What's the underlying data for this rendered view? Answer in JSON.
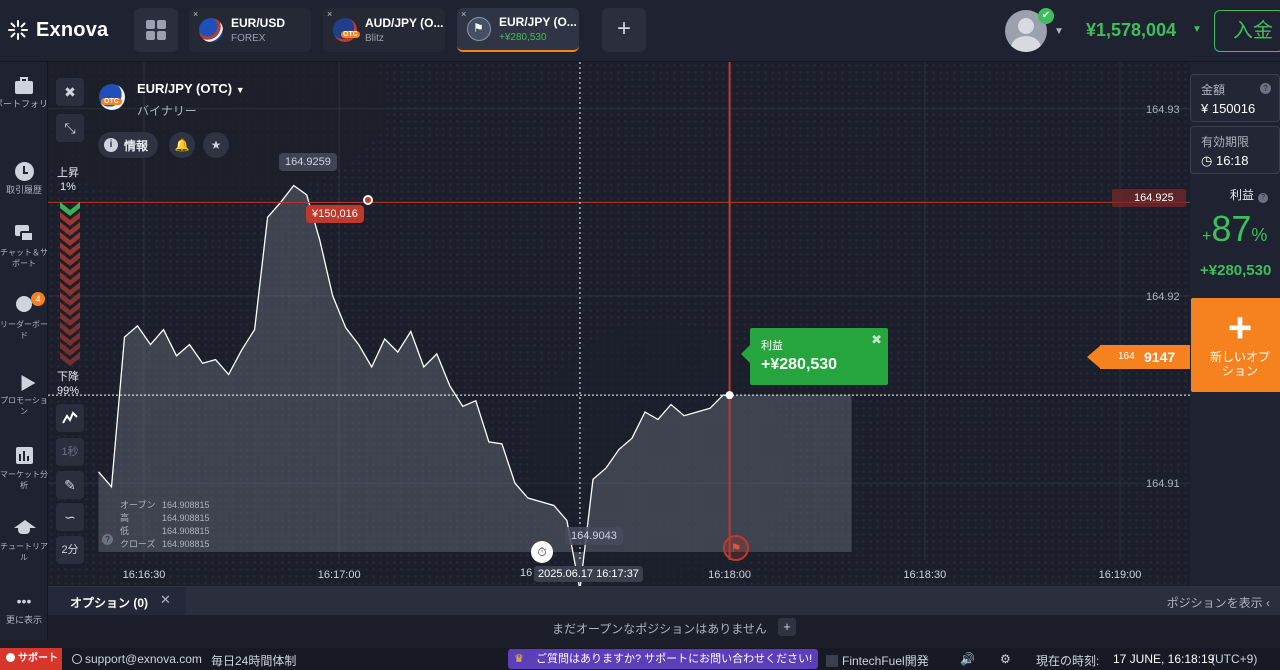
{
  "brand": {
    "name": "Exnova"
  },
  "tabs": [
    {
      "pair": "EUR/USD",
      "sub": "FOREX",
      "close": "×",
      "flag": "eur-usd-flag-icon"
    },
    {
      "pair": "AUD/JPY (O...",
      "sub": "Blitz",
      "close": "×",
      "flag": "aud-jpy-otc-flag-icon"
    },
    {
      "pair": "EUR/JPY (O...",
      "sub": "+¥280,530",
      "close": "×",
      "flag": "checkered-flag-icon"
    }
  ],
  "add_tab": "+",
  "account": {
    "balance": "¥1,578,004",
    "deposit": "入金"
  },
  "sidebar": [
    {
      "label": "ポートフォリオ",
      "icon": "portfolio-icon"
    },
    {
      "label": "取引履歴",
      "icon": "history-icon"
    },
    {
      "label": "チャット＆サポート",
      "icon": "chat-icon"
    },
    {
      "label": "リーダーボード",
      "icon": "leaderboard-icon",
      "badge": "4"
    },
    {
      "label": "プロモーション",
      "icon": "promotion-icon"
    },
    {
      "label": "マーケット分析",
      "icon": "market-analysis-icon"
    },
    {
      "label": "チュートリアル",
      "icon": "tutorial-icon"
    },
    {
      "label": "更に表示",
      "icon": "more-icon",
      "glyph": "•••"
    }
  ],
  "chart_header": {
    "asset": "EUR/JPY (OTC)",
    "type": "バイナリー",
    "otc_badge": "OTC",
    "info": "情報",
    "info_glyph": "i"
  },
  "chart_tools": {
    "close": "✖",
    "collapse": "⤡",
    "timeframe": "1秒",
    "period": "2分"
  },
  "sentiment": {
    "up_label": "上昇",
    "up_pct": "1%",
    "down_label": "下降",
    "down_pct": "99%"
  },
  "ohlc": [
    {
      "k": "オープン",
      "v": "164.908815"
    },
    {
      "k": "高",
      "v": "164.908815"
    },
    {
      "k": "低",
      "v": "164.908815"
    },
    {
      "k": "クローズ",
      "v": "164.908815"
    }
  ],
  "chart_labels": {
    "high_tag": "164.9259",
    "low_tag": "164.9043",
    "investment_tag": "¥150,016",
    "strike_tag": "164.925",
    "current_small": "164",
    "current_big": "9147",
    "time_tag": "2025.06.17 16:17:37",
    "x_cut": "16",
    "profit_title": "利益",
    "profit_value": "+¥280,530",
    "profit_close": "✖"
  },
  "chart_data": {
    "type": "line",
    "title": "",
    "xlabel": "",
    "ylabel": "",
    "x_ticks": [
      "16:16:30",
      "16:17:00",
      "16:18:00",
      "16:18:30",
      "16:19:00"
    ],
    "y_ticks": [
      "164.93",
      "164.92",
      "164.91"
    ],
    "ylim": [
      164.9045,
      164.9325
    ],
    "series": [
      {
        "x": [
          "16:16:23",
          "16:16:25",
          "16:16:27",
          "16:16:29",
          "16:16:31",
          "16:16:33",
          "16:16:35",
          "16:16:37",
          "16:16:39",
          "16:16:41",
          "16:16:43",
          "16:16:45",
          "16:16:47",
          "16:16:49",
          "16:16:51",
          "16:16:53",
          "16:16:55",
          "16:16:57",
          "16:16:59",
          "16:17:01",
          "16:17:03",
          "16:17:05",
          "16:17:07",
          "16:17:09",
          "16:17:11",
          "16:17:13",
          "16:17:15",
          "16:17:17",
          "16:17:19",
          "16:17:21",
          "16:17:23",
          "16:17:25",
          "16:17:27",
          "16:17:29",
          "16:17:31",
          "16:17:33",
          "16:17:35",
          "16:17:37",
          "16:17:39",
          "16:17:41",
          "16:17:43",
          "16:17:45",
          "16:17:47",
          "16:17:49",
          "16:17:51",
          "16:17:53",
          "16:17:55",
          "16:17:57",
          "16:17:59",
          "16:18:00"
        ],
        "y": [
          164.9106,
          164.9098,
          164.9178,
          164.9184,
          164.9174,
          164.9182,
          164.9168,
          164.9174,
          164.9164,
          164.9166,
          164.9158,
          164.9171,
          164.9182,
          164.9242,
          164.925,
          164.9259,
          164.9254,
          164.923,
          164.92,
          164.9183,
          164.9174,
          164.9162,
          164.9177,
          164.917,
          164.9181,
          164.9162,
          164.9169,
          164.9152,
          164.9141,
          164.9144,
          164.9122,
          164.9121,
          164.91,
          164.9092,
          164.909,
          164.9088,
          164.908,
          164.9043,
          164.9102,
          164.9108,
          164.9118,
          164.9124,
          164.9138,
          164.9134,
          164.9142,
          164.9136,
          164.9138,
          164.914,
          164.9147,
          164.9147
        ]
      }
    ],
    "current_price": 164.9147,
    "strike_price": 164.925,
    "grid": true,
    "line_color": "#ffffff",
    "area_color": "#6a6e7e"
  },
  "right_panel": {
    "amount_label": "金額",
    "amount_value": "¥ 150016",
    "expiry_label": "有効期限",
    "expiry_value": "16:18",
    "profit_label": "利益",
    "profit_plus": "+",
    "profit_num": "87",
    "profit_pct_sign": "%",
    "profit_value": "+¥280,530",
    "new_option": "新しいオプション",
    "new_option_plus": "+",
    "help_glyph": "?"
  },
  "options": {
    "tab": "オプション (0)",
    "close": "✕",
    "show_positions": "ポジションを表示",
    "empty": "まだオープンなポジションはありません",
    "empty_plus": "+"
  },
  "footer": {
    "support": "サポート",
    "email": "support@exnova.com",
    "hours": "毎日24時間体制",
    "question": "ご質問はありますか? サポートにお問い合わせください!",
    "brand": "FintechFuel開発",
    "time_label": "現在の時刻:",
    "time_value": "17 JUNE, 16:18:19",
    "tz": "(UTC+9)"
  },
  "colors": {
    "accent": "#f5821f",
    "positive": "#3fbf5b",
    "negative": "#c0392b",
    "bg": "#1c1f2b"
  }
}
